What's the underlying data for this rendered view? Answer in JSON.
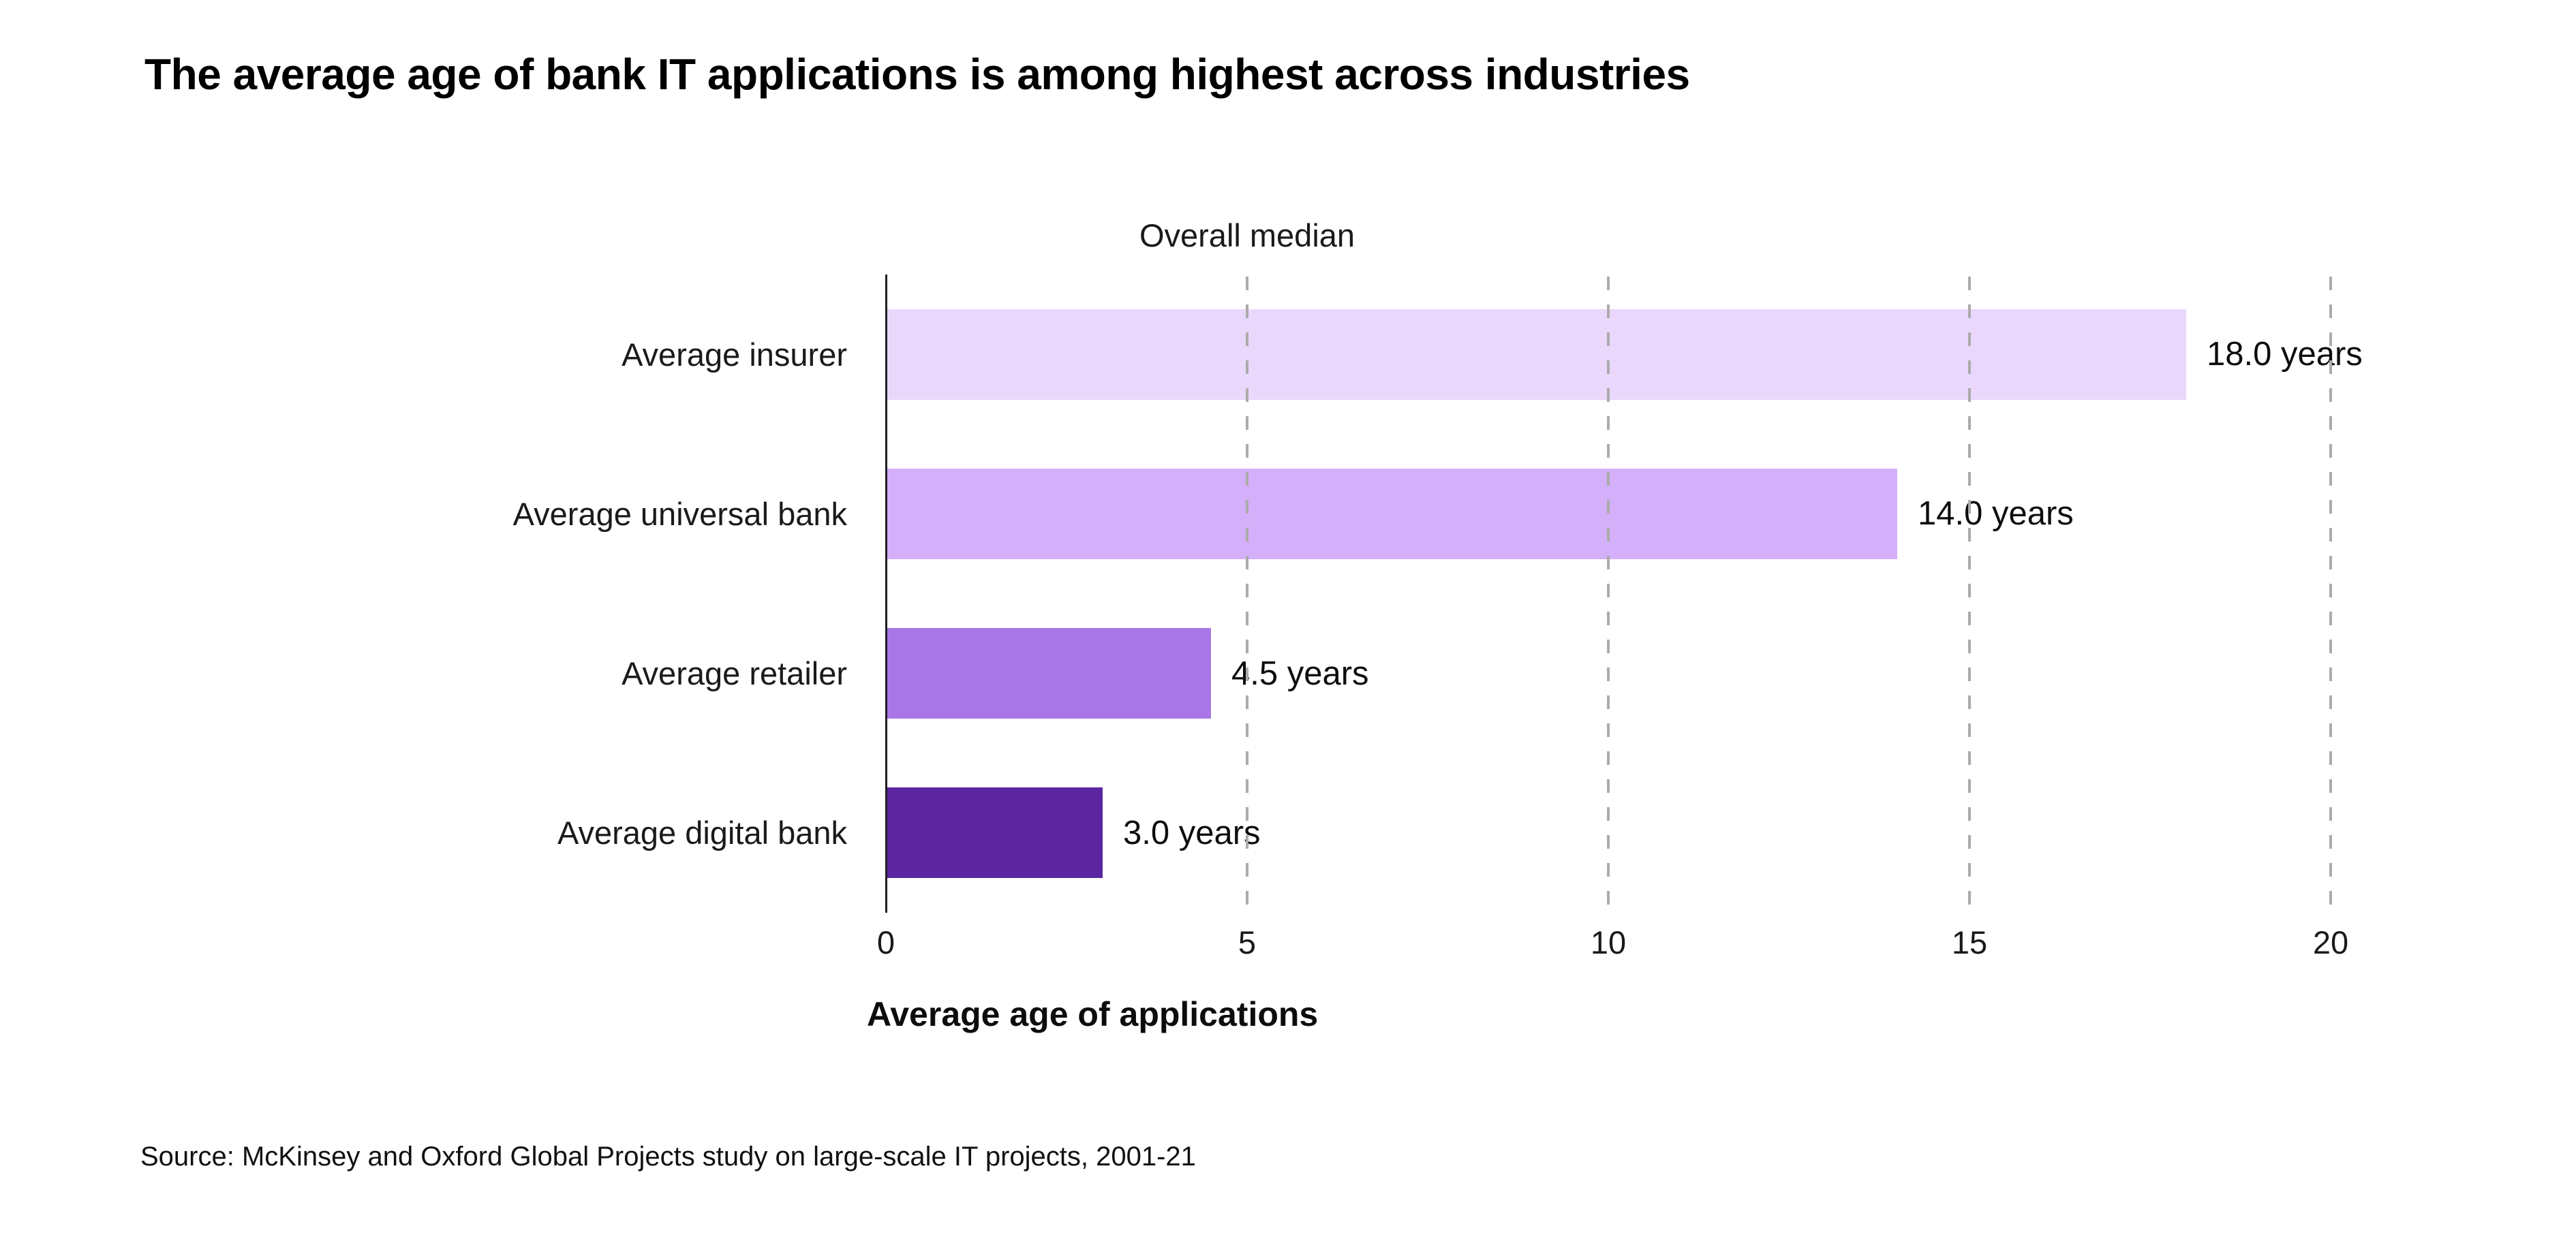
{
  "title": "The average age of bank IT applications is among highest across industries",
  "source": "Source: McKinsey and Oxford Global Projects study on large-scale IT projects, 2001-21",
  "chart_data": {
    "type": "bar",
    "orientation": "horizontal",
    "title": "The average age of bank IT applications is among highest across industries",
    "categories": [
      "Average insurer",
      "Average universal bank",
      "Average retailer",
      "Average digital bank"
    ],
    "values": [
      18.0,
      14.0,
      4.5,
      3.0
    ],
    "value_labels": [
      "18.0 years",
      "14.0 years",
      "4.5 years",
      "3.0 years"
    ],
    "bar_colors": [
      "#E9D8FB",
      "#D4AFFA",
      "#A876E6",
      "#5C26A0"
    ],
    "xlabel": "Average age of applications",
    "ylabel": "",
    "xlim": [
      0,
      20
    ],
    "x_ticks": [
      0,
      5,
      10,
      15,
      20
    ],
    "x_tick_labels": [
      "0",
      "5",
      "10",
      "15",
      "20"
    ],
    "gridlines": {
      "style": "dashed",
      "color": "#ababab",
      "positions": [
        5,
        10,
        15,
        20
      ]
    },
    "annotation": {
      "label": "Overall median",
      "value": 5
    },
    "legend": "none",
    "axis_line_color": "#1f1f1f",
    "background": "#ffffff"
  }
}
